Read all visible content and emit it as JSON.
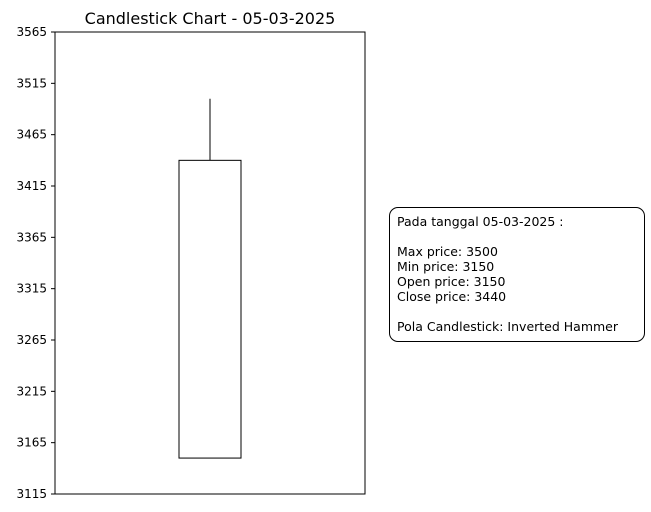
{
  "chart_data": {
    "type": "candlestick",
    "title": "Candlestick Chart - 05-03-2025",
    "xlabel": "",
    "ylabel": "",
    "ylim": [
      3115,
      3565
    ],
    "yticks": [
      3115,
      3165,
      3215,
      3265,
      3315,
      3365,
      3415,
      3465,
      3515,
      3565
    ],
    "ytick_labels": [
      "3115",
      "3165",
      "3215",
      "3265",
      "3315",
      "3365",
      "3415",
      "3465",
      "3515",
      "3565"
    ],
    "grid": false,
    "candles": [
      {
        "date": "05-03-2025",
        "open": 3150,
        "high": 3500,
        "low": 3150,
        "close": 3440
      }
    ],
    "colors": {
      "body_fill": "#ffffff",
      "body_edge": "#000000",
      "wick": "#000000"
    }
  },
  "info_box": {
    "header": "Pada tanggal 05-03-2025 :",
    "max_line": "Max price: 3500",
    "min_line": "Min price: 3150",
    "open_line": "Open price: 3150",
    "close_line": "Close price: 3440",
    "pattern_line": "Pola Candlestick: Inverted Hammer"
  }
}
